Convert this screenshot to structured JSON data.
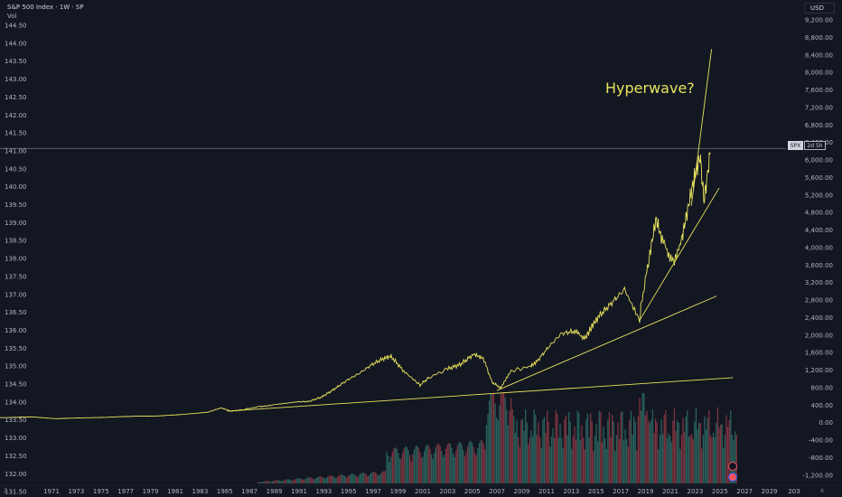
{
  "header": {
    "symbol_title": "S&P 500 Index · 1W · SP",
    "vol_label": "Vol",
    "currency_button": "USD"
  },
  "annotation": {
    "text": "Hyperwave?",
    "color": "#e8e35c"
  },
  "price_badge": {
    "symbol": "SPX",
    "countdown": "2d 5h"
  },
  "bottom_controls": {
    "left": "Z",
    "right": "A"
  },
  "colors": {
    "background": "#131722",
    "price_line": "#e8e35c",
    "trend_line": "#e8e35c",
    "volume_up": "#2d6e66",
    "volume_down": "#8f3a45",
    "horizontal_line": "#7b8c96"
  },
  "icons": [
    "lightning-icon",
    "us-flag-icon"
  ],
  "chart_data": {
    "type": "line",
    "left_axis_ticks": [
      "144.50",
      "144.00",
      "143.50",
      "143.00",
      "142.50",
      "142.00",
      "141.50",
      "141.00",
      "140.50",
      "140.00",
      "139.50",
      "139.00",
      "138.50",
      "138.00",
      "137.50",
      "137.00",
      "136.50",
      "136.00",
      "135.50",
      "135.00",
      "134.50",
      "134.00",
      "133.50",
      "133.00",
      "132.50",
      "132.00",
      "131.50"
    ],
    "right_axis_ticks": [
      "9,200.00",
      "8,800.00",
      "8,400.00",
      "8,000.00",
      "7,600.00",
      "7,200.00",
      "6,800.00",
      "6,400.00",
      "6,000.00",
      "5,600.00",
      "5,200.00",
      "4,800.00",
      "4,400.00",
      "4,000.00",
      "3,600.00",
      "3,200.00",
      "2,800.00",
      "2,400.00",
      "2,000.00",
      "1,600.00",
      "1,200.00",
      "800.00",
      "400.00",
      "0.00",
      "-400.00",
      "-800.00",
      "-1,200.00"
    ],
    "x_axis_ticks": [
      "1971",
      "1973",
      "1975",
      "1977",
      "1979",
      "1981",
      "1983",
      "1985",
      "1987",
      "1989",
      "1991",
      "1993",
      "1995",
      "1997",
      "1999",
      "2001",
      "2003",
      "2005",
      "2007",
      "2009",
      "2011",
      "2013",
      "2015",
      "2017",
      "2019",
      "2021",
      "2023",
      "2025",
      "2027",
      "2029",
      "203"
    ],
    "x_range": [
      1969.5,
      2031.8
    ],
    "y_range": [
      -1400,
      9400
    ],
    "series": [
      {
        "x": [
          1969.5,
          1972,
          1974,
          1975,
          1978,
          1980,
          1982,
          1984,
          1986,
          1987,
          1987.8,
          1988.5,
          1990,
          1991,
          1993,
          1994,
          1995,
          1996,
          1997,
          1998,
          1999,
          2000,
          2000.5,
          2001.5,
          2002.8,
          2003.5,
          2005,
          2006,
          2007,
          2007.8,
          2008.5,
          2009.2,
          2010,
          2011.5,
          2012,
          2013,
          2014,
          2015,
          2015.9,
          2016.5,
          2017,
          2018,
          2019,
          2020.2,
          2020.3,
          2021,
          2021.5,
          2022,
          2022.9,
          2023.5,
          2024,
          2024.5,
          2025,
          2025.3,
          2025.8
        ],
        "y": [
          90,
          110,
          70,
          80,
          100,
          120,
          130,
          170,
          220,
          310,
          240,
          260,
          340,
          370,
          450,
          460,
          560,
          740,
          940,
          1100,
          1300,
          1450,
          1480,
          1150,
          830,
          1000,
          1200,
          1300,
          1520,
          1450,
          900,
          760,
          1150,
          1250,
          1350,
          1700,
          2000,
          2050,
          1900,
          2200,
          2400,
          2700,
          3000,
          2300,
          2600,
          3800,
          4600,
          4100,
          3600,
          4100,
          4800,
          5500,
          6000,
          5000,
          6100
        ]
      },
      {
        "name": "",
        "x": [
          1987.5,
          2027.6
        ],
        "y": [
          240,
          1000
        ]
      },
      {
        "name": "",
        "x": [
          2008.9,
          2026.3
        ],
        "y": [
          710,
          2850
        ]
      },
      {
        "name": "",
        "x": [
          2020.2,
          2026.5
        ],
        "y": [
          2300,
          5300
        ]
      },
      {
        "name": "",
        "x": [
          2024.3,
          2025.9
        ],
        "y": [
          4900,
          8450
        ]
      }
    ],
    "horizontal_level": 6200,
    "volume_note": "volume histogram bars"
  }
}
